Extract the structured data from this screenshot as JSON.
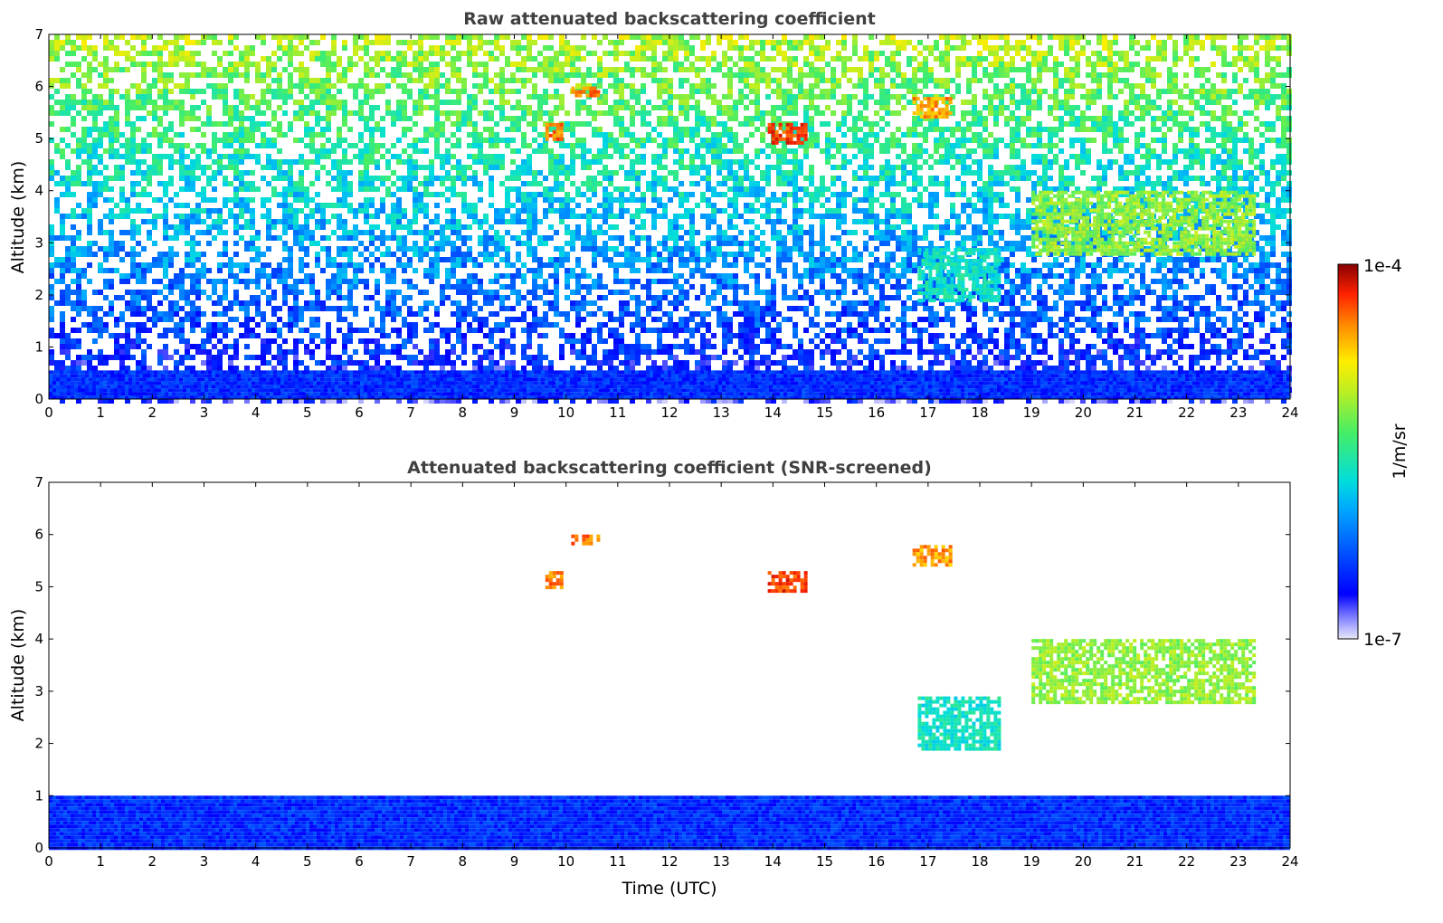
{
  "chart_data": [
    {
      "type": "heatmap",
      "title": "Raw attenuated backscattering coefficient",
      "xlabel": "",
      "ylabel": "Altitude (km)",
      "xlim": [
        0,
        24
      ],
      "ylim": [
        0,
        7
      ],
      "xticks": [
        "0",
        "1",
        "2",
        "3",
        "4",
        "5",
        "6",
        "7",
        "8",
        "9",
        "10",
        "11",
        "12",
        "13",
        "14",
        "15",
        "16",
        "17",
        "18",
        "19",
        "20",
        "21",
        "22",
        "23",
        "24"
      ],
      "yticks": [
        "0",
        "1",
        "2",
        "3",
        "4",
        "5",
        "6",
        "7"
      ],
      "grid": false,
      "colorscale": "log",
      "background_noise": true,
      "features": [
        {
          "label": "boundary layer",
          "t_start": 0,
          "t_end": 24,
          "alt_top": 0.55,
          "level": 0.18
        },
        {
          "label": "aerosol layer",
          "t_start": 16.8,
          "t_end": 18.4,
          "alt_bottom": 1.9,
          "alt_top": 2.9,
          "level": 0.45
        },
        {
          "label": "cloud layer",
          "t_start": 19.0,
          "t_end": 23.3,
          "alt_bottom": 2.8,
          "alt_top": 4.0,
          "level": 0.62
        },
        {
          "label": "cloud",
          "t_start": 9.6,
          "t_end": 9.9,
          "alt_bottom": 5.0,
          "alt_top": 5.3,
          "level": 0.85
        },
        {
          "label": "cloud",
          "t_start": 10.1,
          "t_end": 10.6,
          "alt_bottom": 5.85,
          "alt_top": 6.0,
          "level": 0.85
        },
        {
          "label": "cloud",
          "t_start": 13.9,
          "t_end": 14.6,
          "alt_bottom": 4.9,
          "alt_top": 5.3,
          "level": 0.9
        },
        {
          "label": "cloud",
          "t_start": 16.7,
          "t_end": 17.4,
          "alt_bottom": 5.4,
          "alt_top": 5.8,
          "level": 0.82
        }
      ]
    },
    {
      "type": "heatmap",
      "title": "Attenuated backscattering coefficient (SNR-screened)",
      "xlabel": "Time (UTC)",
      "ylabel": "Altitude (km)",
      "xlim": [
        0,
        24
      ],
      "ylim": [
        0,
        7
      ],
      "xticks": [
        "0",
        "1",
        "2",
        "3",
        "4",
        "5",
        "6",
        "7",
        "8",
        "9",
        "10",
        "11",
        "12",
        "13",
        "14",
        "15",
        "16",
        "17",
        "18",
        "19",
        "20",
        "21",
        "22",
        "23",
        "24"
      ],
      "yticks": [
        "0",
        "1",
        "2",
        "3",
        "4",
        "5",
        "6",
        "7"
      ],
      "grid": false,
      "colorscale": "log",
      "background_noise": false,
      "features": [
        {
          "label": "boundary layer",
          "t_start": 0,
          "t_end": 24,
          "alt_top": 1.0,
          "level": 0.18
        },
        {
          "label": "aerosol layer",
          "t_start": 16.8,
          "t_end": 18.4,
          "alt_bottom": 1.9,
          "alt_top": 2.9,
          "level": 0.45
        },
        {
          "label": "cloud layer",
          "t_start": 19.0,
          "t_end": 23.3,
          "alt_bottom": 2.8,
          "alt_top": 4.0,
          "level": 0.62
        },
        {
          "label": "cloud",
          "t_start": 9.6,
          "t_end": 9.9,
          "alt_bottom": 5.0,
          "alt_top": 5.3,
          "level": 0.85
        },
        {
          "label": "cloud",
          "t_start": 10.1,
          "t_end": 10.6,
          "alt_bottom": 5.85,
          "alt_top": 6.0,
          "level": 0.85
        },
        {
          "label": "cloud",
          "t_start": 13.9,
          "t_end": 14.6,
          "alt_bottom": 4.9,
          "alt_top": 5.3,
          "level": 0.9
        },
        {
          "label": "cloud",
          "t_start": 16.7,
          "t_end": 17.4,
          "alt_bottom": 5.4,
          "alt_top": 5.8,
          "level": 0.82
        }
      ]
    }
  ],
  "colorbar": {
    "label": "1/m/sr",
    "max_label": "1e-4",
    "min_label": "1e-7",
    "min": 1e-07,
    "max": 0.0001,
    "scale": "log",
    "colormap": "jet"
  }
}
